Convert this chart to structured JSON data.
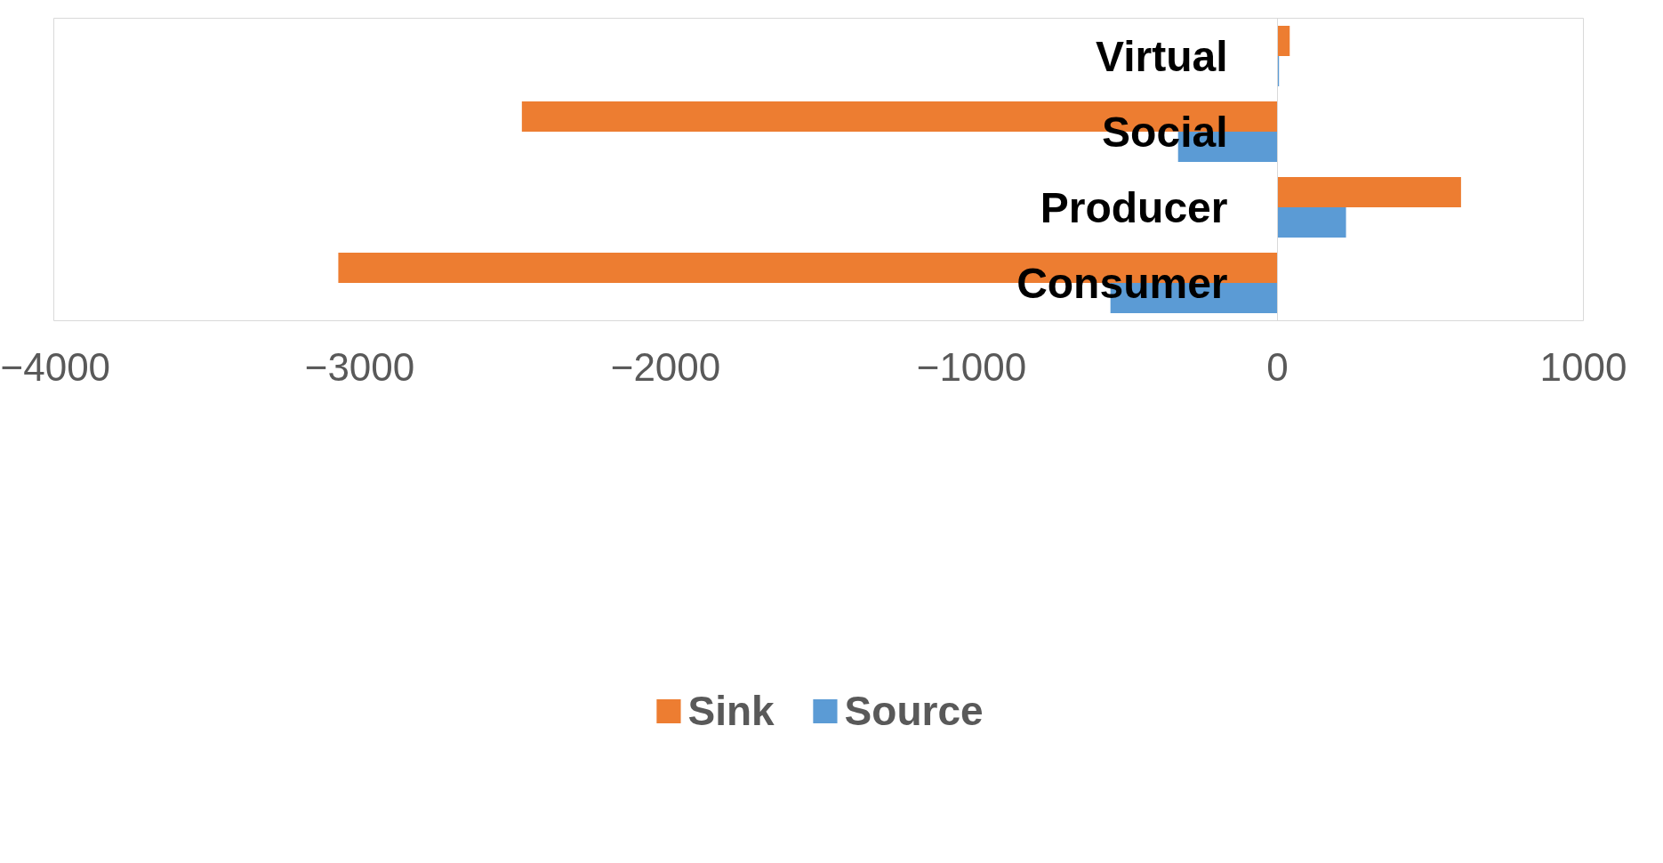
{
  "chart_data": {
    "type": "bar",
    "orientation": "horizontal",
    "categories": [
      "Virtual",
      "Social",
      "Producer",
      "Consumer"
    ],
    "series": [
      {
        "name": "Sink",
        "color": "#ed7d31",
        "values": [
          40,
          -2470,
          600,
          -3070
        ]
      },
      {
        "name": "Source",
        "color": "#5b9bd5",
        "values": [
          5,
          -325,
          224,
          -546
        ]
      }
    ],
    "xlim": [
      -4000,
      1000
    ],
    "xticks": [
      -4000,
      -3000,
      -2000,
      -1000,
      0,
      1000
    ],
    "grid": false,
    "legend": "bottom"
  }
}
